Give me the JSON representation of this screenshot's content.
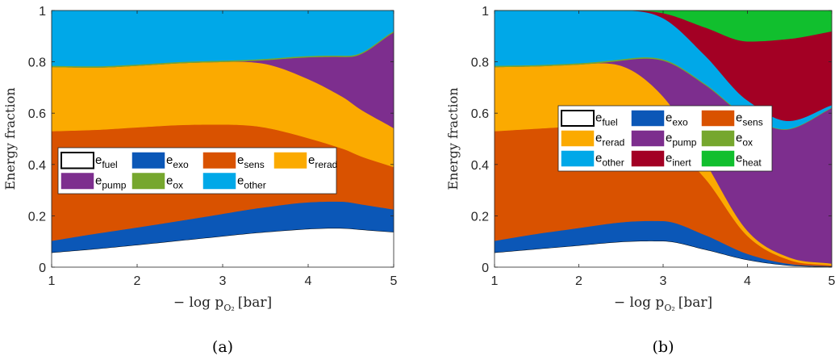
{
  "colors": {
    "fuel": "#ffffff",
    "exo": "#0b57b7",
    "sens": "#d95200",
    "rerad": "#fbaa00",
    "pump": "#7d2e8e",
    "ox": "#76a72e",
    "other": "#00a8e8",
    "inert": "#a30024",
    "heat": "#11bf2e"
  },
  "chart_data": [
    {
      "panel_label": "(a)",
      "type": "area",
      "xlabel": "− log p",
      "xlabel_sub": "O₂",
      "xlabel_unit": "[bar]",
      "ylabel": "Energy fraction",
      "xlim": [
        1,
        5
      ],
      "ylim": [
        0,
        1
      ],
      "x_ticks": [
        "1",
        "2",
        "3",
        "4",
        "5"
      ],
      "y_ticks": [
        "0",
        "0.2",
        "0.4",
        "0.6",
        "0.8",
        "1"
      ],
      "grid": false,
      "legend_position": "middle",
      "legend_columns": 4,
      "x": [
        1.0,
        1.5,
        2.0,
        2.5,
        3.0,
        3.5,
        4.0,
        4.3,
        4.5,
        5.0
      ],
      "series": [
        {
          "name": "e",
          "sub": "fuel",
          "key": "fuel",
          "values": [
            0.058,
            0.072,
            0.088,
            0.105,
            0.122,
            0.138,
            0.15,
            0.153,
            0.151,
            0.138
          ]
        },
        {
          "name": "e",
          "sub": "exo",
          "key": "exo",
          "values": [
            0.045,
            0.058,
            0.067,
            0.076,
            0.086,
            0.096,
            0.103,
            0.103,
            0.101,
            0.087
          ]
        },
        {
          "name": "e",
          "sub": "sens",
          "key": "sens",
          "values": [
            0.427,
            0.405,
            0.39,
            0.373,
            0.348,
            0.31,
            0.25,
            0.217,
            0.197,
            0.165
          ]
        },
        {
          "name": "e",
          "sub": "rerad",
          "key": "rerad",
          "values": [
            0.25,
            0.243,
            0.24,
            0.241,
            0.244,
            0.248,
            0.23,
            0.21,
            0.193,
            0.152
          ]
        },
        {
          "name": "e",
          "sub": "pump",
          "key": "pump",
          "values": [
            0.0,
            0.0,
            0.0,
            0.0,
            0.0,
            0.015,
            0.085,
            0.137,
            0.178,
            0.373
          ]
        },
        {
          "name": "e",
          "sub": "ox",
          "key": "ox",
          "values": [
            0.005,
            0.005,
            0.005,
            0.005,
            0.005,
            0.005,
            0.005,
            0.005,
            0.005,
            0.005
          ]
        },
        {
          "name": "e",
          "sub": "other",
          "key": "other",
          "values": [
            0.215,
            0.217,
            0.21,
            0.2,
            0.195,
            0.188,
            0.177,
            0.175,
            0.175,
            0.08
          ]
        }
      ],
      "legend": [
        "fuel",
        "exo",
        "sens",
        "rerad",
        "pump",
        "ox",
        "other"
      ]
    },
    {
      "panel_label": "(b)",
      "type": "area",
      "xlabel": "− log p",
      "xlabel_sub": "O₂",
      "xlabel_unit": "[bar]",
      "ylabel": "Energy fraction",
      "xlim": [
        1,
        5
      ],
      "ylim": [
        0,
        1
      ],
      "x_ticks": [
        "1",
        "2",
        "3",
        "4",
        "5"
      ],
      "y_ticks": [
        "0",
        "0.2",
        "0.4",
        "0.6",
        "0.8",
        "1"
      ],
      "grid": false,
      "legend_position": "upper-middle",
      "legend_columns": 3,
      "x": [
        1.0,
        1.5,
        2.0,
        2.5,
        3.0,
        3.5,
        4.0,
        4.5,
        5.0
      ],
      "series": [
        {
          "name": "e",
          "sub": "fuel",
          "key": "fuel",
          "values": [
            0.058,
            0.072,
            0.086,
            0.1,
            0.103,
            0.07,
            0.03,
            0.008,
            0.003
          ]
        },
        {
          "name": "e",
          "sub": "exo",
          "key": "exo",
          "values": [
            0.045,
            0.058,
            0.067,
            0.075,
            0.077,
            0.055,
            0.022,
            0.005,
            0.001
          ]
        },
        {
          "name": "e",
          "sub": "sens",
          "key": "sens",
          "values": [
            0.427,
            0.41,
            0.397,
            0.375,
            0.32,
            0.22,
            0.07,
            0.015,
            0.003
          ]
        },
        {
          "name": "e",
          "sub": "rerad",
          "key": "rerad",
          "values": [
            0.25,
            0.243,
            0.24,
            0.235,
            0.165,
            0.065,
            0.02,
            0.01,
            0.007
          ]
        },
        {
          "name": "e",
          "sub": "pump",
          "key": "pump",
          "values": [
            0.0,
            0.0,
            0.0,
            0.02,
            0.14,
            0.3,
            0.445,
            0.5,
            0.606
          ]
        },
        {
          "name": "e",
          "sub": "ox",
          "key": "ox",
          "values": [
            0.005,
            0.005,
            0.005,
            0.005,
            0.005,
            0.004,
            0.003,
            0.002,
            0.002
          ]
        },
        {
          "name": "e",
          "sub": "other",
          "key": "other",
          "values": [
            0.215,
            0.212,
            0.205,
            0.19,
            0.16,
            0.11,
            0.06,
            0.03,
            0.01
          ]
        },
        {
          "name": "e",
          "sub": "inert",
          "key": "inert",
          "values": [
            0.0,
            0.0,
            0.0,
            0.0,
            0.02,
            0.11,
            0.23,
            0.32,
            0.287
          ]
        },
        {
          "name": "e",
          "sub": "heat",
          "key": "heat",
          "values": [
            0.0,
            0.0,
            0.0,
            0.0,
            0.01,
            0.066,
            0.12,
            0.11,
            0.081
          ]
        }
      ],
      "legend": [
        "fuel",
        "exo",
        "sens",
        "rerad",
        "pump",
        "ox",
        "other",
        "inert",
        "heat"
      ]
    }
  ]
}
